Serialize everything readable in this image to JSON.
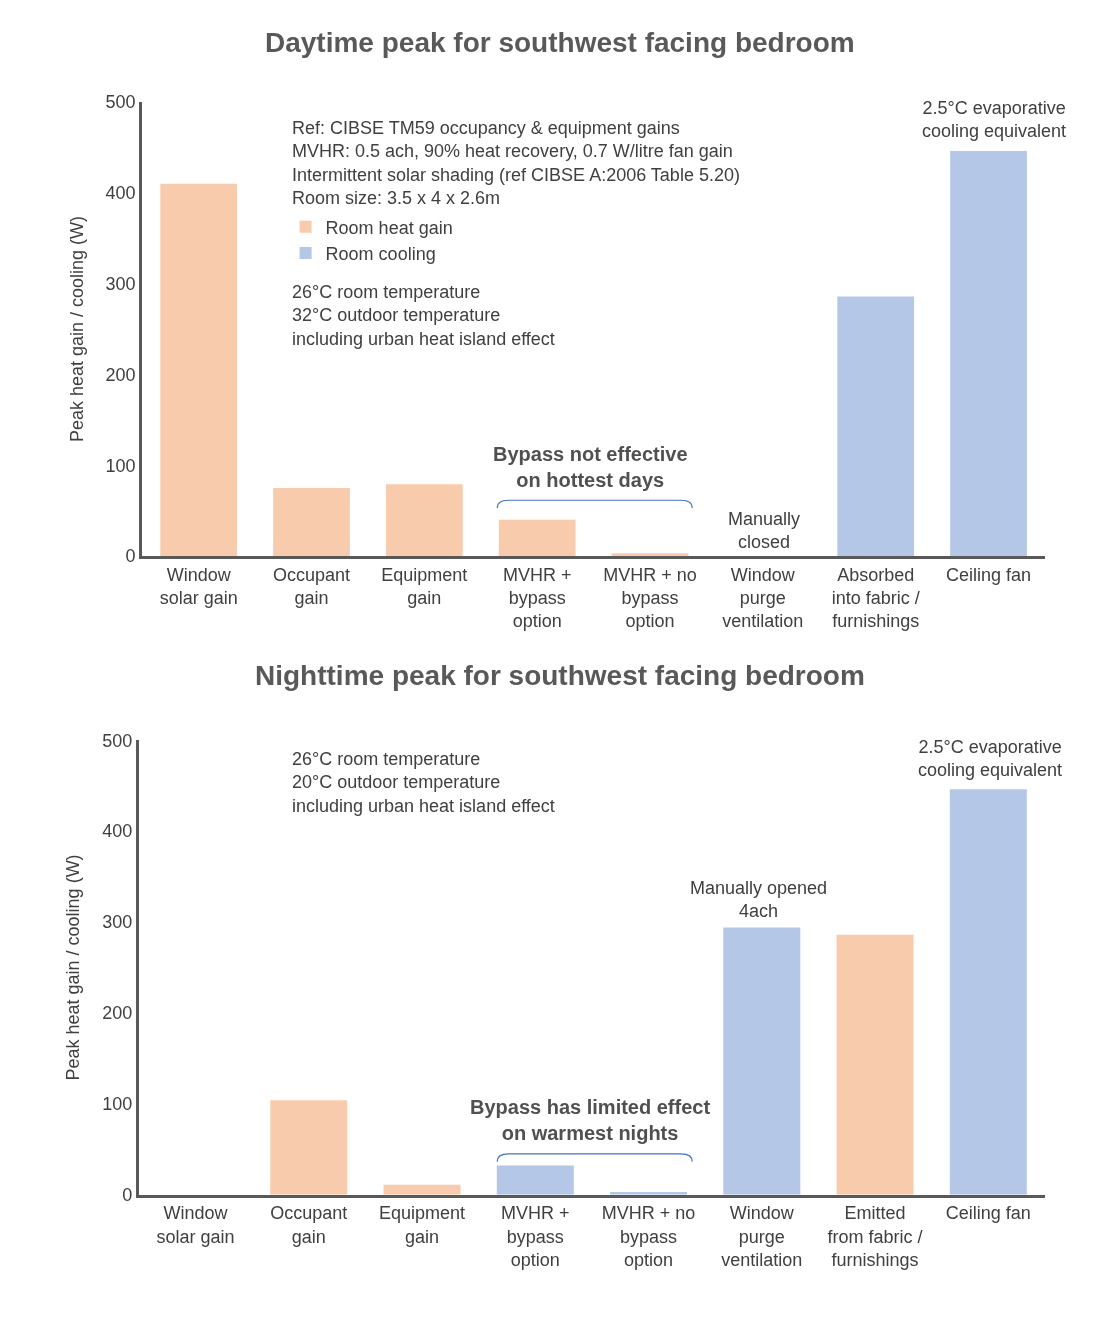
{
  "chart_data": [
    {
      "type": "bar",
      "title": "Daytime peak for southwest facing bedroom",
      "ylabel": "Peak heat gain / cooling (W)",
      "categories": [
        "Window solar gain",
        "Occupant gain",
        "Equipment gain",
        "MVHR + bypass option",
        "MVHR + no bypass option",
        "Window purge ventilation",
        "Absorbed into fabric / furnishings",
        "Ceiling fan"
      ],
      "series": [
        {
          "name": "Room heat gain",
          "color": "#f8cbad",
          "values": [
            410,
            75,
            79,
            40,
            3,
            0,
            null,
            null
          ]
        },
        {
          "name": "Room cooling",
          "color": "#b4c7e7",
          "values": [
            null,
            null,
            null,
            null,
            null,
            null,
            286,
            446
          ]
        }
      ],
      "ylim": [
        0,
        500
      ],
      "yticks": [
        0,
        100,
        200,
        300,
        400,
        500
      ],
      "legend": "top",
      "annotations": [
        "Ref: CIBSE TM59 occupancy & equipment gains\nMVHR: 0.5 ach, 90% heat recovery, 0.7 W/litre fan gain\nIntermittent solar shading (ref CIBSE A:2006 Table 5.20)\nRoom size: 3.5 x 4 x 2.6m",
        "26°C room temperature\n32°C outdoor temperature\nincluding urban heat island effect",
        "Bypass not effective\non hottest days",
        "Manually\nclosed",
        "2.5°C evaporative\ncooling equivalent"
      ]
    },
    {
      "type": "bar",
      "title": "Nighttime peak for southwest facing bedroom",
      "ylabel": "Peak heat gain / cooling (W)",
      "categories": [
        "Window solar gain",
        "Occupant gain",
        "Equipment gain",
        "MVHR + bypass option",
        "MVHR + no bypass option",
        "Window purge ventilation",
        "Emitted from fabric / furnishings",
        "Ceiling fan"
      ],
      "series": [
        {
          "color": "#f8cbad",
          "values": [
            0,
            104,
            11,
            null,
            null,
            null,
            286,
            null
          ]
        },
        {
          "color": "#b4c7e7",
          "values": [
            null,
            null,
            null,
            32,
            3,
            294,
            null,
            446
          ]
        }
      ],
      "ylim": [
        0,
        500
      ],
      "yticks": [
        0,
        100,
        200,
        300,
        400,
        500
      ],
      "annotations": [
        "26°C room temperature\n20°C outdoor temperature\nincluding urban heat island effect",
        "Bypass has limited effect\non warmest nights",
        "Manually opened\n4ach",
        "2.5°C evaporative\ncooling equivalent"
      ]
    }
  ]
}
